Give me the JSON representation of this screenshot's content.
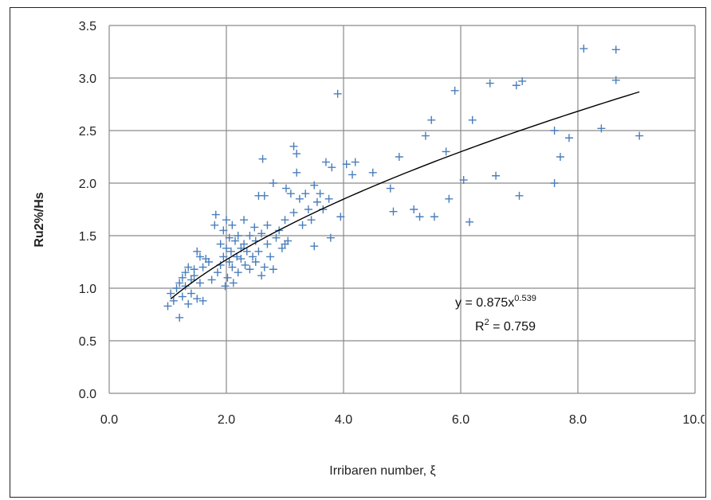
{
  "chart_data": {
    "type": "scatter",
    "title": "",
    "xlabel": "Irribaren number, ξ",
    "ylabel": "Ru2%/Hs",
    "xlim": [
      0,
      10
    ],
    "ylim": [
      0,
      3.5
    ],
    "x_ticks": [
      "0.0",
      "2.0",
      "4.0",
      "6.0",
      "8.0",
      "10.0"
    ],
    "y_ticks": [
      "0.0",
      "0.5",
      "1.0",
      "1.5",
      "2.0",
      "2.5",
      "3.0",
      "3.5"
    ],
    "grid": true,
    "marker": "+",
    "point_color": "#4a7ebb",
    "trend_color": "#000000",
    "trendline": {
      "type": "power",
      "a": 0.875,
      "b": 0.539,
      "x_range": [
        1.05,
        9.05
      ],
      "equation_text": "y = 0.875x",
      "equation_exponent": "0.539",
      "r2_text": "R",
      "r2_sup": "2",
      "r2_value_text": " = 0.759"
    },
    "points": [
      [
        1.0,
        0.83
      ],
      [
        1.05,
        0.95
      ],
      [
        1.1,
        0.88
      ],
      [
        1.15,
        1.0
      ],
      [
        1.2,
        0.72
      ],
      [
        1.2,
        1.05
      ],
      [
        1.25,
        0.92
      ],
      [
        1.25,
        1.1
      ],
      [
        1.3,
        1.02
      ],
      [
        1.3,
        1.15
      ],
      [
        1.35,
        0.85
      ],
      [
        1.35,
        1.2
      ],
      [
        1.4,
        0.95
      ],
      [
        1.4,
        1.08
      ],
      [
        1.45,
        1.12
      ],
      [
        1.45,
        1.18
      ],
      [
        1.5,
        1.35
      ],
      [
        1.5,
        0.9
      ],
      [
        1.55,
        1.3
      ],
      [
        1.55,
        1.05
      ],
      [
        1.6,
        0.88
      ],
      [
        1.6,
        1.2
      ],
      [
        1.65,
        1.28
      ],
      [
        1.7,
        1.25
      ],
      [
        1.75,
        1.08
      ],
      [
        1.8,
        1.6
      ],
      [
        1.82,
        1.7
      ],
      [
        1.85,
        1.15
      ],
      [
        1.9,
        1.42
      ],
      [
        1.9,
        1.22
      ],
      [
        1.95,
        1.3
      ],
      [
        1.95,
        1.55
      ],
      [
        1.98,
        1.02
      ],
      [
        2.0,
        1.38
      ],
      [
        2.0,
        1.65
      ],
      [
        2.02,
        1.1
      ],
      [
        2.05,
        1.48
      ],
      [
        2.05,
        1.25
      ],
      [
        2.08,
        1.35
      ],
      [
        2.1,
        1.6
      ],
      [
        2.1,
        1.2
      ],
      [
        2.12,
        1.05
      ],
      [
        2.15,
        1.45
      ],
      [
        2.18,
        1.3
      ],
      [
        2.2,
        1.5
      ],
      [
        2.2,
        1.15
      ],
      [
        2.25,
        1.38
      ],
      [
        2.25,
        1.28
      ],
      [
        2.3,
        1.42
      ],
      [
        2.3,
        1.65
      ],
      [
        2.32,
        1.22
      ],
      [
        2.35,
        1.35
      ],
      [
        2.4,
        1.5
      ],
      [
        2.4,
        1.18
      ],
      [
        2.45,
        1.3
      ],
      [
        2.48,
        1.58
      ],
      [
        2.5,
        1.25
      ],
      [
        2.5,
        1.45
      ],
      [
        2.55,
        1.88
      ],
      [
        2.55,
        1.35
      ],
      [
        2.6,
        1.52
      ],
      [
        2.6,
        1.12
      ],
      [
        2.62,
        2.23
      ],
      [
        2.65,
        1.2
      ],
      [
        2.65,
        1.88
      ],
      [
        2.7,
        1.6
      ],
      [
        2.7,
        1.42
      ],
      [
        2.75,
        1.3
      ],
      [
        2.8,
        1.18
      ],
      [
        2.8,
        2.0
      ],
      [
        2.85,
        1.48
      ],
      [
        2.9,
        1.55
      ],
      [
        2.95,
        1.38
      ],
      [
        3.0,
        1.65
      ],
      [
        3.0,
        1.42
      ],
      [
        3.02,
        1.95
      ],
      [
        3.05,
        1.45
      ],
      [
        3.1,
        1.9
      ],
      [
        3.15,
        1.72
      ],
      [
        3.15,
        2.35
      ],
      [
        3.2,
        2.1
      ],
      [
        3.2,
        2.28
      ],
      [
        3.25,
        1.85
      ],
      [
        3.3,
        1.6
      ],
      [
        3.35,
        1.9
      ],
      [
        3.4,
        1.75
      ],
      [
        3.45,
        1.65
      ],
      [
        3.5,
        1.98
      ],
      [
        3.5,
        1.4
      ],
      [
        3.55,
        1.82
      ],
      [
        3.6,
        1.9
      ],
      [
        3.65,
        1.75
      ],
      [
        3.7,
        2.2
      ],
      [
        3.75,
        1.85
      ],
      [
        3.8,
        2.15
      ],
      [
        3.78,
        1.48
      ],
      [
        3.9,
        2.85
      ],
      [
        3.95,
        1.68
      ],
      [
        4.05,
        2.18
      ],
      [
        4.15,
        2.08
      ],
      [
        4.2,
        2.2
      ],
      [
        4.5,
        2.1
      ],
      [
        4.8,
        1.95
      ],
      [
        4.85,
        1.73
      ],
      [
        4.95,
        2.25
      ],
      [
        5.2,
        1.75
      ],
      [
        5.3,
        1.68
      ],
      [
        5.4,
        2.45
      ],
      [
        5.5,
        2.6
      ],
      [
        5.55,
        1.68
      ],
      [
        5.75,
        2.3
      ],
      [
        5.8,
        1.85
      ],
      [
        5.9,
        2.88
      ],
      [
        6.05,
        2.03
      ],
      [
        6.15,
        1.63
      ],
      [
        6.2,
        2.6
      ],
      [
        6.5,
        2.95
      ],
      [
        6.6,
        2.07
      ],
      [
        6.95,
        2.93
      ],
      [
        7.0,
        1.88
      ],
      [
        7.05,
        2.97
      ],
      [
        7.6,
        2.0
      ],
      [
        7.6,
        2.5
      ],
      [
        7.7,
        2.25
      ],
      [
        7.85,
        2.43
      ],
      [
        8.1,
        3.28
      ],
      [
        8.4,
        2.52
      ],
      [
        8.65,
        3.27
      ],
      [
        8.65,
        2.98
      ],
      [
        9.05,
        2.45
      ]
    ]
  }
}
